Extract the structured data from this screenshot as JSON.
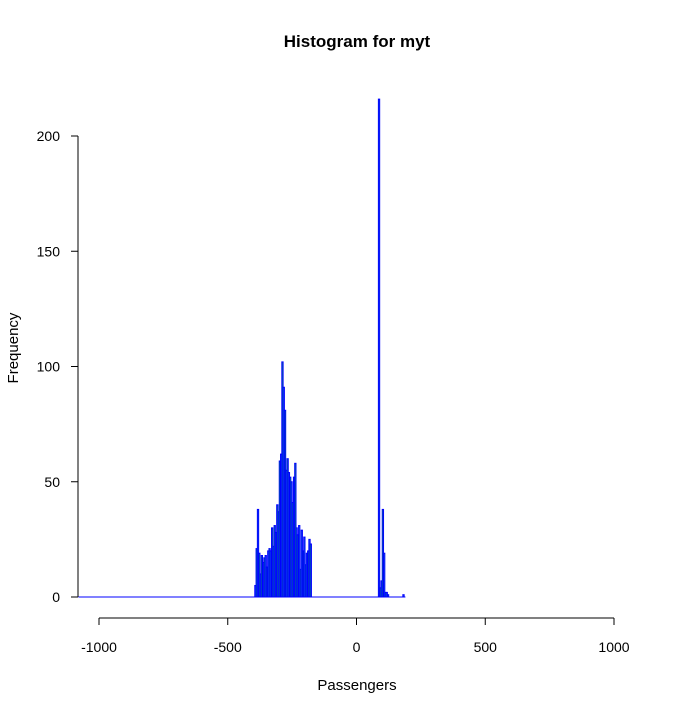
{
  "chart_data": {
    "type": "bar",
    "title": "Histogram for myt",
    "xlabel": "Passengers",
    "ylabel": "Frequency",
    "xlim": [
      -1000,
      1000
    ],
    "ylim": [
      0,
      200
    ],
    "x_ticks": [
      -1000,
      -500,
      0,
      500,
      1000
    ],
    "y_ticks": [
      0,
      50,
      100,
      150,
      200
    ],
    "bin_width": 5,
    "bins_start": -1080,
    "bins_end": 190,
    "series": [
      {
        "bins": [
          [
            -395,
            -390,
            5
          ],
          [
            -390,
            -385,
            21
          ],
          [
            -385,
            -380,
            38
          ],
          [
            -380,
            -375,
            19
          ],
          [
            -375,
            -370,
            10
          ],
          [
            -370,
            -365,
            18
          ],
          [
            -365,
            -360,
            15
          ],
          [
            -360,
            -355,
            17
          ],
          [
            -355,
            -350,
            18
          ],
          [
            -350,
            -345,
            13
          ],
          [
            -345,
            -340,
            20
          ],
          [
            -340,
            -335,
            21
          ],
          [
            -335,
            -330,
            20
          ],
          [
            -330,
            -325,
            30
          ],
          [
            -325,
            -320,
            22
          ],
          [
            -320,
            -315,
            31
          ],
          [
            -315,
            -310,
            28
          ],
          [
            -310,
            -305,
            40
          ],
          [
            -305,
            -300,
            37
          ],
          [
            -300,
            -295,
            59
          ],
          [
            -295,
            -290,
            62
          ],
          [
            -290,
            -285,
            102
          ],
          [
            -285,
            -280,
            91
          ],
          [
            -280,
            -275,
            81
          ],
          [
            -275,
            -270,
            55
          ],
          [
            -270,
            -265,
            60
          ],
          [
            -265,
            -260,
            54
          ],
          [
            -260,
            -255,
            52
          ],
          [
            -255,
            -250,
            50
          ],
          [
            -250,
            -245,
            41
          ],
          [
            -245,
            -240,
            52
          ],
          [
            -240,
            -235,
            58
          ],
          [
            -235,
            -230,
            30
          ],
          [
            -230,
            -225,
            27
          ],
          [
            -225,
            -220,
            31
          ],
          [
            -220,
            -215,
            12
          ],
          [
            -215,
            -210,
            29
          ],
          [
            -210,
            -205,
            20
          ],
          [
            -205,
            -200,
            26
          ],
          [
            -200,
            -195,
            14
          ],
          [
            -195,
            -190,
            19
          ],
          [
            -190,
            -185,
            20
          ],
          [
            -185,
            -180,
            25
          ],
          [
            -180,
            -175,
            23
          ],
          [
            85,
            90,
            216
          ],
          [
            90,
            95,
            4
          ],
          [
            95,
            100,
            7
          ],
          [
            100,
            105,
            38
          ],
          [
            105,
            110,
            19
          ],
          [
            110,
            115,
            2
          ],
          [
            115,
            120,
            2
          ],
          [
            120,
            125,
            1
          ],
          [
            180,
            185,
            1
          ]
        ],
        "fill_colors": [
          "#1f8fd6",
          "#00d23c"
        ]
      }
    ],
    "bar_stroke": "#0000ff"
  }
}
